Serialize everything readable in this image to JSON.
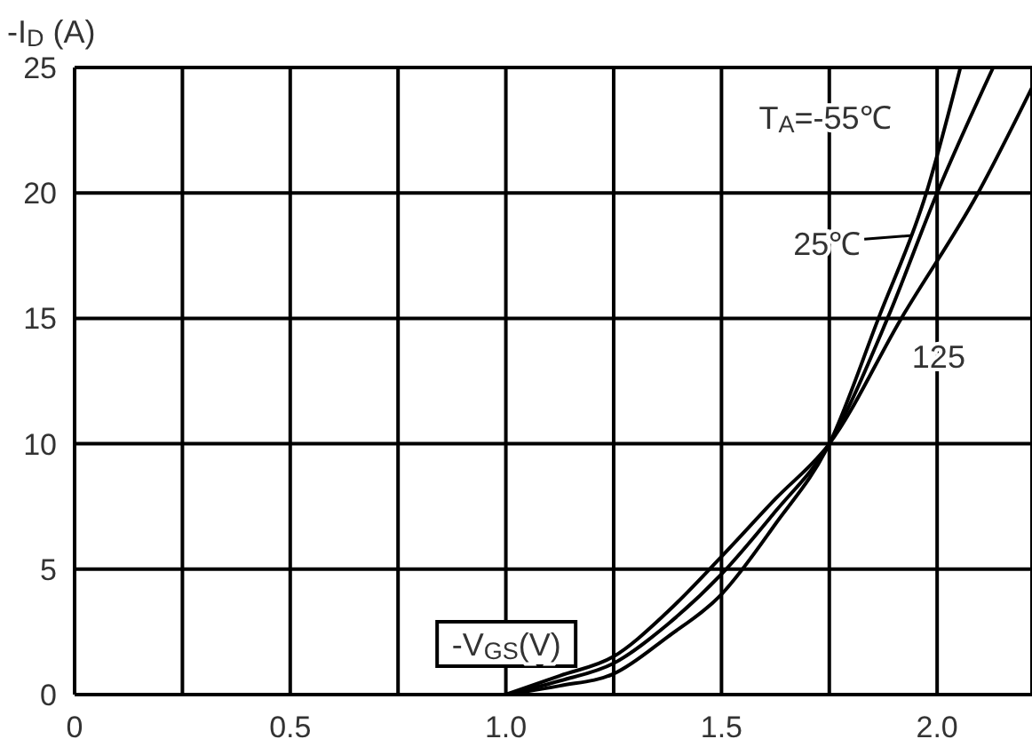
{
  "chart_data": {
    "type": "line",
    "xlabel": "-V$_{GS}$(V)",
    "ylabel": "-I$_{D}$ (A)",
    "xlim": [
      0,
      2.22
    ],
    "ylim": [
      0,
      25
    ],
    "xticks": [
      0,
      {
        "value": 0.25,
        "label": null
      },
      {
        "value": 0.5,
        "label": "0.5"
      },
      {
        "value": 0.75,
        "label": null
      },
      {
        "value": 1.0,
        "label": "1.0"
      },
      {
        "value": 1.25,
        "label": null
      },
      {
        "value": 1.5,
        "label": "1.5"
      },
      {
        "value": 1.75,
        "label": null
      },
      {
        "value": 2.0,
        "label": "2.0"
      }
    ],
    "yticks": [
      0,
      5,
      10,
      15,
      20,
      25
    ],
    "grid": true,
    "series": [
      {
        "name": "T$_{A}$=-55℃",
        "color": "#000000",
        "x": [
          1.0,
          1.125,
          1.25,
          1.375,
          1.5,
          1.625,
          1.75,
          1.864,
          1.975,
          2.054
        ],
        "values": [
          0,
          0.35,
          0.83,
          2.3,
          4.0,
          6.8,
          10,
          15,
          20,
          25
        ]
      },
      {
        "name": "25℃",
        "color": "#000000",
        "x": [
          1.0,
          1.125,
          1.25,
          1.375,
          1.5,
          1.625,
          1.75,
          1.885,
          2.0,
          2.13
        ],
        "values": [
          0,
          0.55,
          1.25,
          2.8,
          4.8,
          7.3,
          10,
          15,
          20,
          25
        ]
      },
      {
        "name": "125",
        "color": "#000000",
        "x": [
          1.0,
          1.125,
          1.25,
          1.375,
          1.5,
          1.625,
          1.75,
          1.917,
          2.095,
          2.22
        ],
        "values": [
          0,
          0.75,
          1.52,
          3.3,
          5.5,
          7.8,
          10,
          15,
          20,
          24.2
        ]
      }
    ]
  }
}
